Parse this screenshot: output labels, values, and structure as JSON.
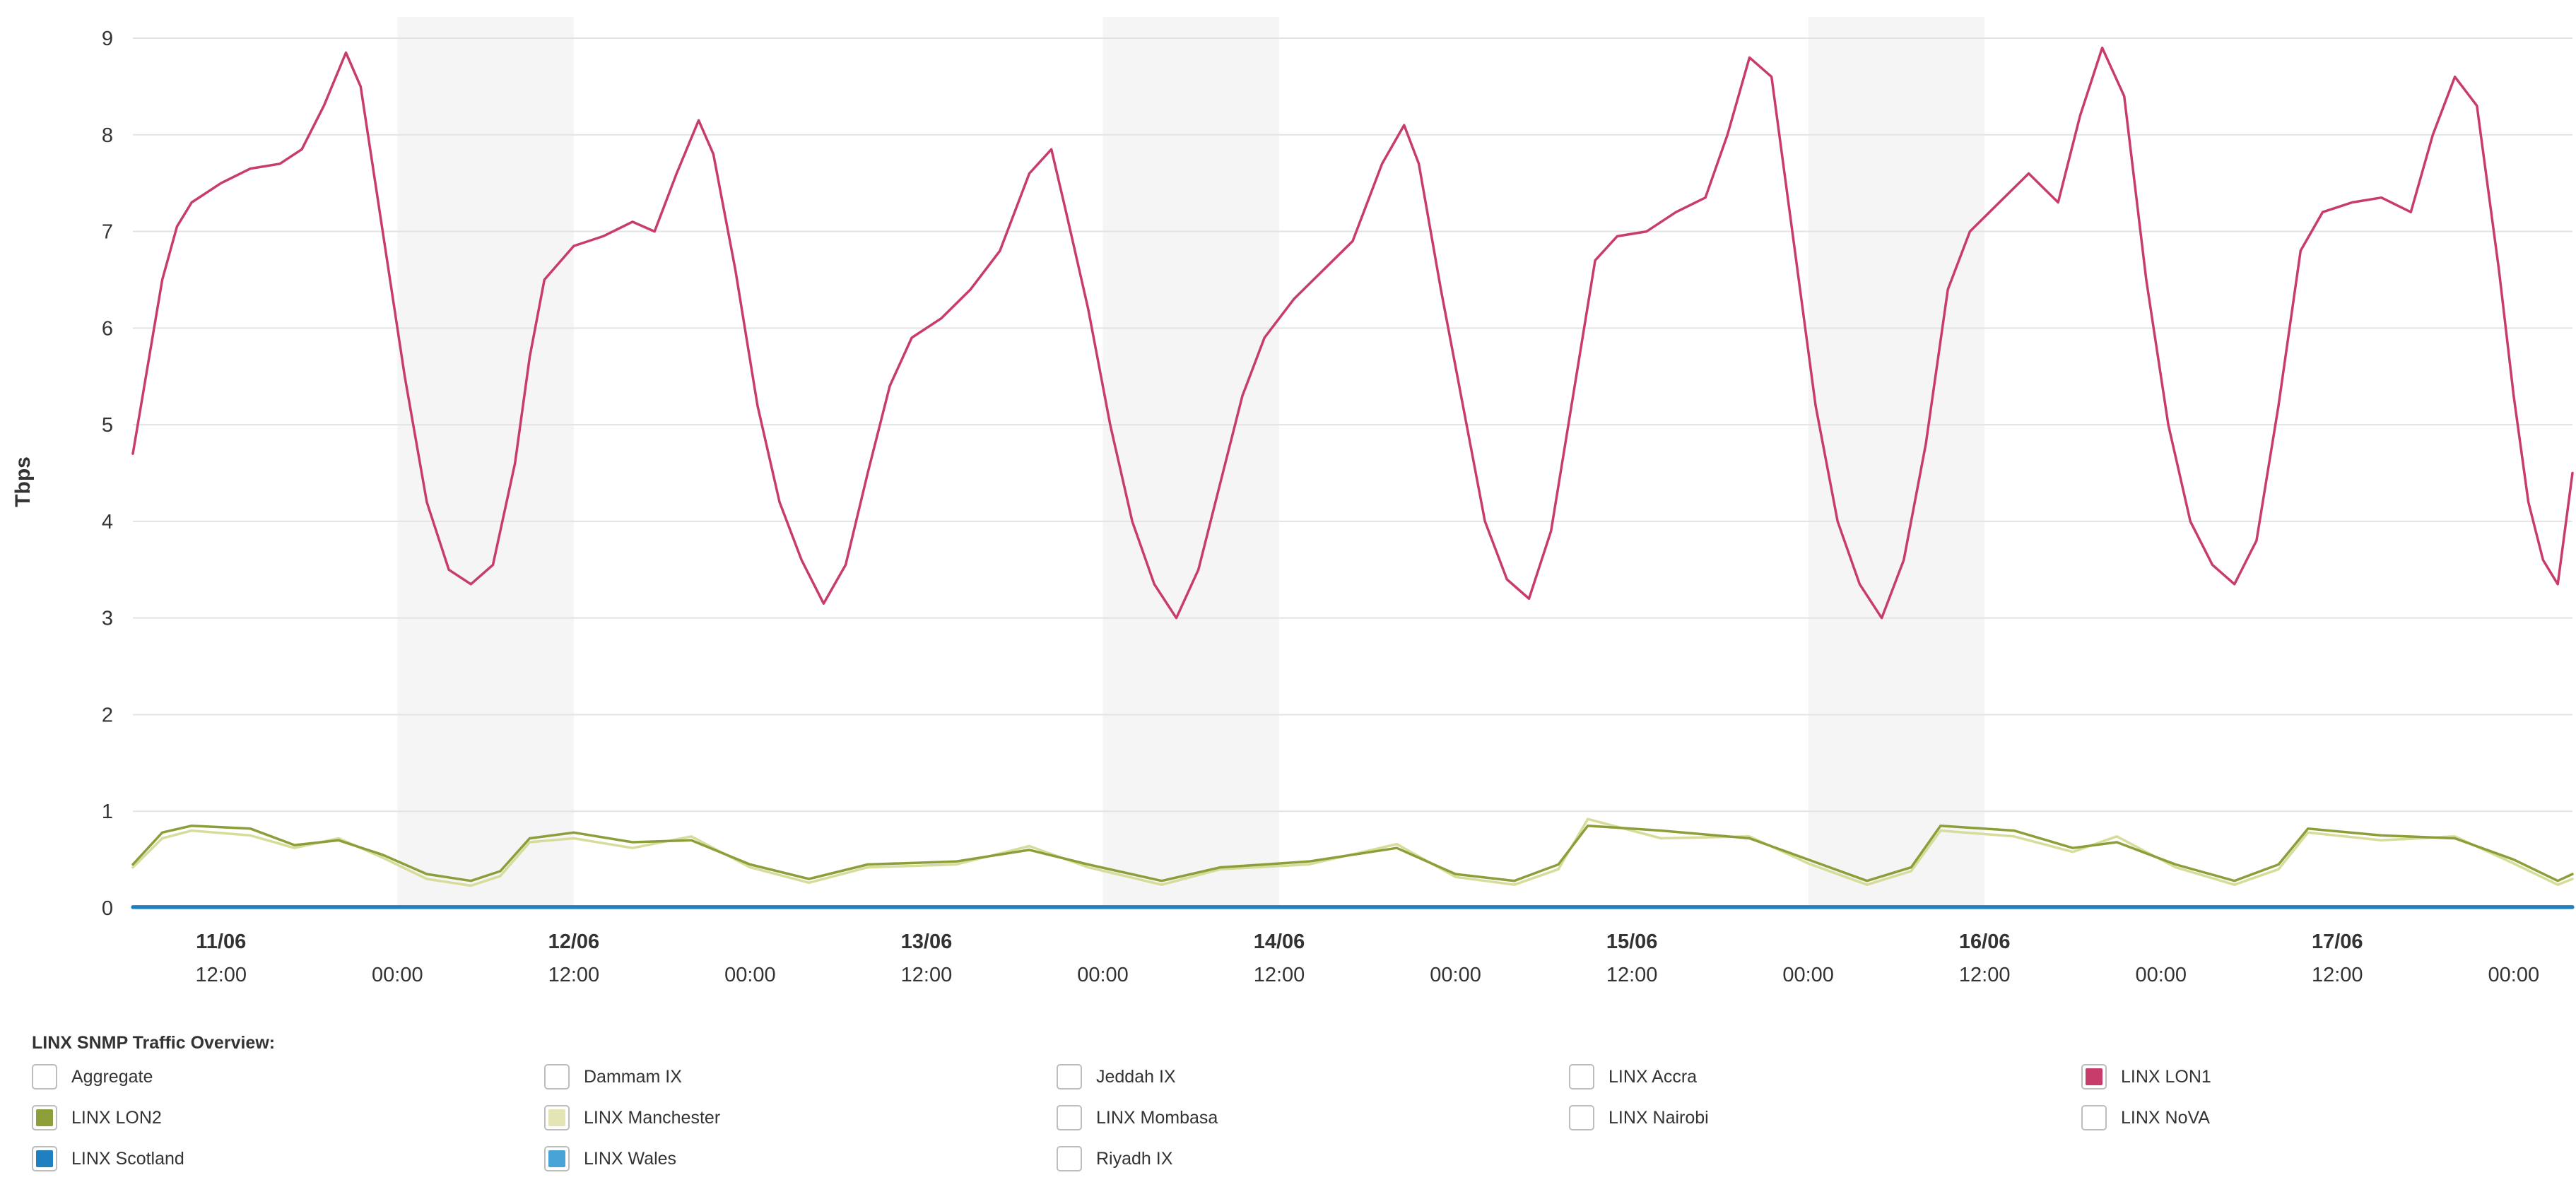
{
  "chart_data": {
    "type": "line",
    "title": "",
    "xlabel": "",
    "ylabel": "Tbps",
    "ylim": [
      0,
      9
    ],
    "yticks": [
      "0",
      "1",
      "2",
      "3",
      "4",
      "5",
      "6",
      "7",
      "8",
      "9"
    ],
    "xlim": [
      "2024-06-11T06:00",
      "2024-06-18T04:00"
    ],
    "x_date_labels": [
      {
        "date": "11/06",
        "x": "2024-06-11T12:00"
      },
      {
        "date": "12/06",
        "x": "2024-06-12T12:00"
      },
      {
        "date": "13/06",
        "x": "2024-06-13T12:00"
      },
      {
        "date": "14/06",
        "x": "2024-06-14T12:00"
      },
      {
        "date": "15/06",
        "x": "2024-06-15T12:00"
      },
      {
        "date": "16/06",
        "x": "2024-06-16T12:00"
      },
      {
        "date": "17/06",
        "x": "2024-06-17T12:00"
      }
    ],
    "x_time_labels": [
      {
        "label": "12:00",
        "x": "2024-06-11T12:00"
      },
      {
        "label": "00:00",
        "x": "2024-06-12T00:00"
      },
      {
        "label": "12:00",
        "x": "2024-06-12T12:00"
      },
      {
        "label": "00:00",
        "x": "2024-06-13T00:00"
      },
      {
        "label": "12:00",
        "x": "2024-06-13T12:00"
      },
      {
        "label": "00:00",
        "x": "2024-06-14T00:00"
      },
      {
        "label": "12:00",
        "x": "2024-06-14T12:00"
      },
      {
        "label": "00:00",
        "x": "2024-06-15T00:00"
      },
      {
        "label": "12:00",
        "x": "2024-06-15T12:00"
      },
      {
        "label": "00:00",
        "x": "2024-06-16T00:00"
      },
      {
        "label": "12:00",
        "x": "2024-06-16T12:00"
      },
      {
        "label": "00:00",
        "x": "2024-06-17T00:00"
      },
      {
        "label": "12:00",
        "x": "2024-06-17T12:00"
      },
      {
        "label": "00:00",
        "x": "2024-06-18T00:00"
      }
    ],
    "night_bands": [
      [
        "2024-06-12T00:00",
        "2024-06-12T12:00"
      ],
      [
        "2024-06-14T00:00",
        "2024-06-14T12:00"
      ],
      [
        "2024-06-16T00:00",
        "2024-06-16T12:00"
      ]
    ],
    "grid": true,
    "series": [
      {
        "name": "LINX LON1",
        "color": "#c83c6c",
        "points": [
          [
            "2024-06-11T06:00",
            4.7
          ],
          [
            "2024-06-11T07:00",
            5.6
          ],
          [
            "2024-06-11T08:00",
            6.5
          ],
          [
            "2024-06-11T09:00",
            7.05
          ],
          [
            "2024-06-11T10:00",
            7.3
          ],
          [
            "2024-06-11T12:00",
            7.5
          ],
          [
            "2024-06-11T14:00",
            7.65
          ],
          [
            "2024-06-11T16:00",
            7.7
          ],
          [
            "2024-06-11T17:30",
            7.85
          ],
          [
            "2024-06-11T19:00",
            8.3
          ],
          [
            "2024-06-11T20:30",
            8.85
          ],
          [
            "2024-06-11T21:30",
            8.5
          ],
          [
            "2024-06-11T23:00",
            7.0
          ],
          [
            "2024-06-12T00:30",
            5.5
          ],
          [
            "2024-06-12T02:00",
            4.2
          ],
          [
            "2024-06-12T03:30",
            3.5
          ],
          [
            "2024-06-12T05:00",
            3.35
          ],
          [
            "2024-06-12T06:30",
            3.55
          ],
          [
            "2024-06-12T08:00",
            4.6
          ],
          [
            "2024-06-12T09:00",
            5.7
          ],
          [
            "2024-06-12T10:00",
            6.5
          ],
          [
            "2024-06-12T12:00",
            6.85
          ],
          [
            "2024-06-12T14:00",
            6.95
          ],
          [
            "2024-06-12T16:00",
            7.1
          ],
          [
            "2024-06-12T17:30",
            7.0
          ],
          [
            "2024-06-12T19:00",
            7.6
          ],
          [
            "2024-06-12T20:30",
            8.15
          ],
          [
            "2024-06-12T21:30",
            7.8
          ],
          [
            "2024-06-12T23:00",
            6.6
          ],
          [
            "2024-06-13T00:30",
            5.2
          ],
          [
            "2024-06-13T02:00",
            4.2
          ],
          [
            "2024-06-13T03:30",
            3.6
          ],
          [
            "2024-06-13T05:00",
            3.15
          ],
          [
            "2024-06-13T06:30",
            3.55
          ],
          [
            "2024-06-13T08:00",
            4.5
          ],
          [
            "2024-06-13T09:30",
            5.4
          ],
          [
            "2024-06-13T11:00",
            5.9
          ],
          [
            "2024-06-13T13:00",
            6.1
          ],
          [
            "2024-06-13T15:00",
            6.4
          ],
          [
            "2024-06-13T17:00",
            6.8
          ],
          [
            "2024-06-13T19:00",
            7.6
          ],
          [
            "2024-06-13T20:30",
            7.85
          ],
          [
            "2024-06-13T21:30",
            7.2
          ],
          [
            "2024-06-13T23:00",
            6.2
          ],
          [
            "2024-06-14T00:30",
            5.0
          ],
          [
            "2024-06-14T02:00",
            4.0
          ],
          [
            "2024-06-14T03:30",
            3.35
          ],
          [
            "2024-06-14T05:00",
            3.0
          ],
          [
            "2024-06-14T06:30",
            3.5
          ],
          [
            "2024-06-14T08:00",
            4.4
          ],
          [
            "2024-06-14T09:30",
            5.3
          ],
          [
            "2024-06-14T11:00",
            5.9
          ],
          [
            "2024-06-14T13:00",
            6.3
          ],
          [
            "2024-06-14T15:00",
            6.6
          ],
          [
            "2024-06-14T17:00",
            6.9
          ],
          [
            "2024-06-14T19:00",
            7.7
          ],
          [
            "2024-06-14T20:30",
            8.1
          ],
          [
            "2024-06-14T21:30",
            7.7
          ],
          [
            "2024-06-14T23:00",
            6.4
          ],
          [
            "2024-06-15T00:30",
            5.2
          ],
          [
            "2024-06-15T02:00",
            4.0
          ],
          [
            "2024-06-15T03:30",
            3.4
          ],
          [
            "2024-06-15T05:00",
            3.2
          ],
          [
            "2024-06-15T06:30",
            3.9
          ],
          [
            "2024-06-15T08:00",
            5.3
          ],
          [
            "2024-06-15T09:30",
            6.7
          ],
          [
            "2024-06-15T11:00",
            6.95
          ],
          [
            "2024-06-15T13:00",
            7.0
          ],
          [
            "2024-06-15T15:00",
            7.2
          ],
          [
            "2024-06-15T17:00",
            7.35
          ],
          [
            "2024-06-15T18:30",
            8.0
          ],
          [
            "2024-06-15T20:00",
            8.8
          ],
          [
            "2024-06-15T21:30",
            8.6
          ],
          [
            "2024-06-15T23:00",
            6.9
          ],
          [
            "2024-06-16T00:30",
            5.2
          ],
          [
            "2024-06-16T02:00",
            4.0
          ],
          [
            "2024-06-16T03:30",
            3.35
          ],
          [
            "2024-06-16T05:00",
            3.0
          ],
          [
            "2024-06-16T06:30",
            3.6
          ],
          [
            "2024-06-16T08:00",
            4.8
          ],
          [
            "2024-06-16T09:30",
            6.4
          ],
          [
            "2024-06-16T11:00",
            7.0
          ],
          [
            "2024-06-16T13:00",
            7.3
          ],
          [
            "2024-06-16T15:00",
            7.6
          ],
          [
            "2024-06-16T17:00",
            7.3
          ],
          [
            "2024-06-16T18:30",
            8.2
          ],
          [
            "2024-06-16T20:00",
            8.9
          ],
          [
            "2024-06-16T21:30",
            8.4
          ],
          [
            "2024-06-16T23:00",
            6.5
          ],
          [
            "2024-06-17T00:30",
            5.0
          ],
          [
            "2024-06-17T02:00",
            4.0
          ],
          [
            "2024-06-17T03:30",
            3.55
          ],
          [
            "2024-06-17T05:00",
            3.35
          ],
          [
            "2024-06-17T06:30",
            3.8
          ],
          [
            "2024-06-17T08:00",
            5.2
          ],
          [
            "2024-06-17T09:30",
            6.8
          ],
          [
            "2024-06-17T11:00",
            7.2
          ],
          [
            "2024-06-17T13:00",
            7.3
          ],
          [
            "2024-06-17T15:00",
            7.35
          ],
          [
            "2024-06-17T17:00",
            7.2
          ],
          [
            "2024-06-17T18:30",
            8.0
          ],
          [
            "2024-06-17T20:00",
            8.6
          ],
          [
            "2024-06-17T21:30",
            8.3
          ],
          [
            "2024-06-17T23:00",
            6.6
          ],
          [
            "2024-06-18T00:00",
            5.3
          ],
          [
            "2024-06-18T01:00",
            4.2
          ],
          [
            "2024-06-18T02:00",
            3.6
          ],
          [
            "2024-06-18T03:00",
            3.35
          ],
          [
            "2024-06-18T04:00",
            4.5
          ]
        ]
      },
      {
        "name": "LINX LON2",
        "color": "#8c9e3a",
        "points": [
          [
            "2024-06-11T06:00",
            0.45
          ],
          [
            "2024-06-11T08:00",
            0.78
          ],
          [
            "2024-06-11T10:00",
            0.85
          ],
          [
            "2024-06-11T14:00",
            0.82
          ],
          [
            "2024-06-11T17:00",
            0.65
          ],
          [
            "2024-06-11T20:00",
            0.7
          ],
          [
            "2024-06-11T23:00",
            0.55
          ],
          [
            "2024-06-12T02:00",
            0.35
          ],
          [
            "2024-06-12T05:00",
            0.28
          ],
          [
            "2024-06-12T07:00",
            0.38
          ],
          [
            "2024-06-12T09:00",
            0.72
          ],
          [
            "2024-06-12T12:00",
            0.78
          ],
          [
            "2024-06-12T16:00",
            0.68
          ],
          [
            "2024-06-12T20:00",
            0.7
          ],
          [
            "2024-06-13T00:00",
            0.45
          ],
          [
            "2024-06-13T04:00",
            0.3
          ],
          [
            "2024-06-13T08:00",
            0.45
          ],
          [
            "2024-06-13T14:00",
            0.48
          ],
          [
            "2024-06-13T19:00",
            0.6
          ],
          [
            "2024-06-13T23:00",
            0.45
          ],
          [
            "2024-06-14T04:00",
            0.28
          ],
          [
            "2024-06-14T08:00",
            0.42
          ],
          [
            "2024-06-14T14:00",
            0.48
          ],
          [
            "2024-06-14T20:00",
            0.62
          ],
          [
            "2024-06-15T00:00",
            0.35
          ],
          [
            "2024-06-15T04:00",
            0.28
          ],
          [
            "2024-06-15T07:00",
            0.45
          ],
          [
            "2024-06-15T09:00",
            0.85
          ],
          [
            "2024-06-15T14:00",
            0.8
          ],
          [
            "2024-06-15T20:00",
            0.72
          ],
          [
            "2024-06-16T00:00",
            0.5
          ],
          [
            "2024-06-16T04:00",
            0.28
          ],
          [
            "2024-06-16T07:00",
            0.42
          ],
          [
            "2024-06-16T09:00",
            0.85
          ],
          [
            "2024-06-16T14:00",
            0.8
          ],
          [
            "2024-06-16T18:00",
            0.62
          ],
          [
            "2024-06-16T21:00",
            0.68
          ],
          [
            "2024-06-17T01:00",
            0.45
          ],
          [
            "2024-06-17T05:00",
            0.28
          ],
          [
            "2024-06-17T08:00",
            0.45
          ],
          [
            "2024-06-17T10:00",
            0.82
          ],
          [
            "2024-06-17T15:00",
            0.75
          ],
          [
            "2024-06-17T20:00",
            0.72
          ],
          [
            "2024-06-18T00:00",
            0.5
          ],
          [
            "2024-06-18T03:00",
            0.28
          ],
          [
            "2024-06-18T04:00",
            0.35
          ]
        ]
      },
      {
        "name": "LINX Manchester",
        "color": "#d8dc9a",
        "points": [
          [
            "2024-06-11T06:00",
            0.42
          ],
          [
            "2024-06-11T08:00",
            0.72
          ],
          [
            "2024-06-11T10:00",
            0.8
          ],
          [
            "2024-06-11T14:00",
            0.75
          ],
          [
            "2024-06-11T17:00",
            0.62
          ],
          [
            "2024-06-11T20:00",
            0.72
          ],
          [
            "2024-06-11T23:00",
            0.52
          ],
          [
            "2024-06-12T02:00",
            0.3
          ],
          [
            "2024-06-12T05:00",
            0.23
          ],
          [
            "2024-06-12T07:00",
            0.33
          ],
          [
            "2024-06-12T09:00",
            0.68
          ],
          [
            "2024-06-12T12:00",
            0.72
          ],
          [
            "2024-06-12T16:00",
            0.62
          ],
          [
            "2024-06-12T20:00",
            0.74
          ],
          [
            "2024-06-13T00:00",
            0.42
          ],
          [
            "2024-06-13T04:00",
            0.26
          ],
          [
            "2024-06-13T08:00",
            0.42
          ],
          [
            "2024-06-13T14:00",
            0.45
          ],
          [
            "2024-06-13T19:00",
            0.64
          ],
          [
            "2024-06-13T23:00",
            0.42
          ],
          [
            "2024-06-14T04:00",
            0.24
          ],
          [
            "2024-06-14T08:00",
            0.4
          ],
          [
            "2024-06-14T14:00",
            0.45
          ],
          [
            "2024-06-14T20:00",
            0.66
          ],
          [
            "2024-06-15T00:00",
            0.32
          ],
          [
            "2024-06-15T04:00",
            0.24
          ],
          [
            "2024-06-15T07:00",
            0.4
          ],
          [
            "2024-06-15T09:00",
            0.92
          ],
          [
            "2024-06-15T14:00",
            0.72
          ],
          [
            "2024-06-15T20:00",
            0.74
          ],
          [
            "2024-06-16T00:00",
            0.46
          ],
          [
            "2024-06-16T04:00",
            0.24
          ],
          [
            "2024-06-16T07:00",
            0.38
          ],
          [
            "2024-06-16T09:00",
            0.8
          ],
          [
            "2024-06-16T14:00",
            0.74
          ],
          [
            "2024-06-16T18:00",
            0.58
          ],
          [
            "2024-06-16T21:00",
            0.74
          ],
          [
            "2024-06-17T01:00",
            0.42
          ],
          [
            "2024-06-17T05:00",
            0.24
          ],
          [
            "2024-06-17T08:00",
            0.4
          ],
          [
            "2024-06-17T10:00",
            0.78
          ],
          [
            "2024-06-17T15:00",
            0.7
          ],
          [
            "2024-06-17T20:00",
            0.74
          ],
          [
            "2024-06-18T00:00",
            0.46
          ],
          [
            "2024-06-18T03:00",
            0.24
          ],
          [
            "2024-06-18T04:00",
            0.3
          ]
        ]
      },
      {
        "name": "LINX Scotland",
        "color": "#1f7fc0",
        "points": [
          [
            "2024-06-11T06:00",
            0.01
          ],
          [
            "2024-06-18T04:00",
            0.01
          ]
        ]
      },
      {
        "name": "LINX Wales",
        "color": "#4aa3d6",
        "points": [
          [
            "2024-06-11T06:00",
            0.005
          ],
          [
            "2024-06-18T04:00",
            0.005
          ]
        ]
      }
    ]
  },
  "legend": {
    "title": "LINX SNMP Traffic Overview:",
    "items": [
      {
        "label": "Aggregate",
        "checked": false,
        "color": ""
      },
      {
        "label": "Dammam IX",
        "checked": false,
        "color": ""
      },
      {
        "label": "Jeddah IX",
        "checked": false,
        "color": ""
      },
      {
        "label": "LINX Accra",
        "checked": false,
        "color": ""
      },
      {
        "label": "LINX LON1",
        "checked": true,
        "color": "#c83c6c"
      },
      {
        "label": "LINX LON2",
        "checked": true,
        "color": "#8c9e3a"
      },
      {
        "label": "LINX Manchester",
        "checked": true,
        "color": "#e3e6b4"
      },
      {
        "label": "LINX Mombasa",
        "checked": false,
        "color": ""
      },
      {
        "label": "LINX Nairobi",
        "checked": false,
        "color": ""
      },
      {
        "label": "LINX NoVA",
        "checked": false,
        "color": ""
      },
      {
        "label": "LINX Scotland",
        "checked": true,
        "color": "#1f7fc0"
      },
      {
        "label": "LINX Wales",
        "checked": true,
        "color": "#4aa3d6"
      },
      {
        "label": "Riyadh IX",
        "checked": false,
        "color": ""
      }
    ]
  }
}
